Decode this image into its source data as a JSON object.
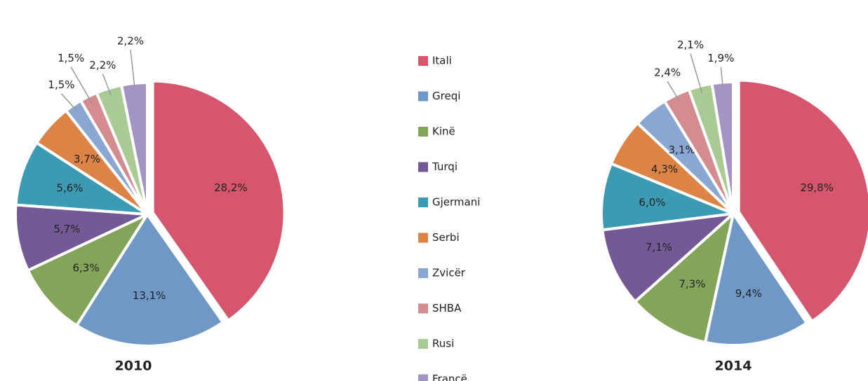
{
  "legend": {
    "labels": [
      "Itali",
      "Greqi",
      "Kinë",
      "Turqi",
      "Gjermani",
      "Serbi",
      "Zvicër",
      "SHBA",
      "Rusi",
      "Francë"
    ],
    "colors": [
      "#d6566e",
      "#6f98c6",
      "#82a55a",
      "#735a96",
      "#3c9bb3",
      "#dd8346",
      "#8aa6d3",
      "#d48c8f",
      "#a9cb93",
      "#a295c3"
    ]
  },
  "chart_data": [
    {
      "type": "pie",
      "title": "2010",
      "values": [
        28.2,
        13.1,
        6.3,
        5.7,
        5.6,
        3.7,
        1.5,
        1.5,
        2.2,
        2.2
      ],
      "value_labels": [
        "28,2%",
        "13,1%",
        "6,3%",
        "5,7%",
        "5,6%",
        "3,7%",
        "1,5%",
        "1,5%",
        "2,2%",
        "2,2%"
      ]
    },
    {
      "type": "pie",
      "title": "2014",
      "values": [
        29.8,
        9.4,
        7.3,
        7.1,
        6.0,
        4.3,
        3.1,
        2.4,
        2.1,
        1.9
      ],
      "value_labels": [
        "29,8%",
        "9,4%",
        "7,3%",
        "7,1%",
        "6,0%",
        "4,3%",
        "3,1%",
        "2,4%",
        "2,1%",
        "1,9%"
      ]
    }
  ]
}
